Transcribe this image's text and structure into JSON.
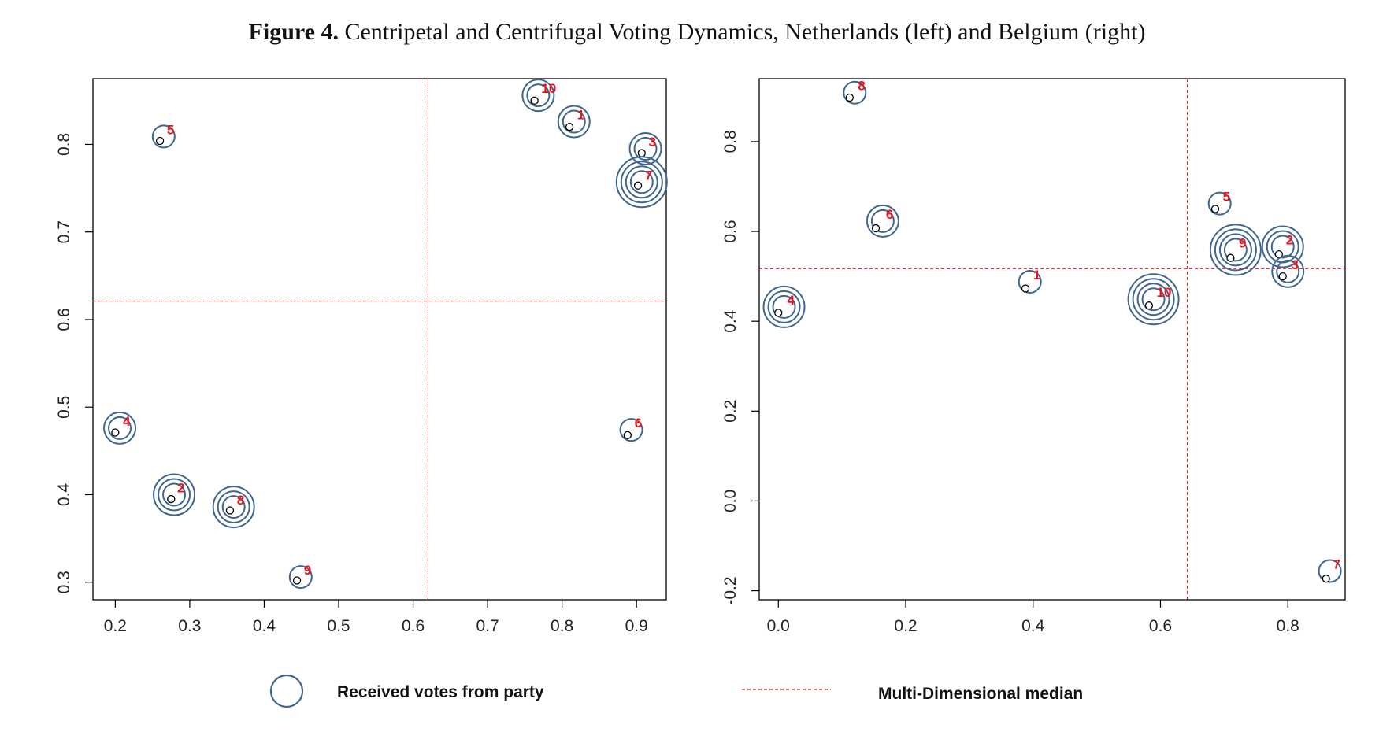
{
  "figure": {
    "title_bold": "Figure 4.",
    "title_rest": " Centripetal and Centrifugal Voting Dynamics, Netherlands (left) and Belgium (right)"
  },
  "legend": {
    "circle_label": "Received votes from party",
    "median_label": "Multi-Dimensional median"
  },
  "colors": {
    "ring": "#3e6690",
    "median": "#e8141c",
    "label": "#e8141c",
    "point": "#000000"
  },
  "chart_data": [
    {
      "type": "scatter",
      "panel": "Netherlands (left)",
      "xlim": [
        0.17,
        0.94
      ],
      "ylim": [
        0.28,
        0.875
      ],
      "x_ticks": [
        0.2,
        0.3,
        0.4,
        0.5,
        0.6,
        0.7,
        0.8,
        0.9
      ],
      "y_ticks": [
        0.3,
        0.4,
        0.5,
        0.6,
        0.7,
        0.8
      ],
      "x_tick_labels": [
        "0.2",
        "0.3",
        "0.4",
        "0.5",
        "0.6",
        "0.7",
        "0.8",
        "0.9"
      ],
      "y_tick_labels": [
        "0.3",
        "0.4",
        "0.5",
        "0.6",
        "0.7",
        "0.8"
      ],
      "median": {
        "x": 0.62,
        "y": 0.621
      },
      "parties": [
        {
          "label": "1",
          "x": 0.81,
          "y": 0.82,
          "cx": 0.816,
          "cy": 0.826,
          "rings": 2
        },
        {
          "label": "2",
          "x": 0.275,
          "y": 0.395,
          "cx": 0.279,
          "cy": 0.4,
          "rings": 3
        },
        {
          "label": "3",
          "x": 0.907,
          "y": 0.79,
          "cx": 0.912,
          "cy": 0.795,
          "rings": 2
        },
        {
          "label": "4",
          "x": 0.2,
          "y": 0.471,
          "cx": 0.206,
          "cy": 0.476,
          "rings": 2
        },
        {
          "label": "5",
          "x": 0.26,
          "y": 0.804,
          "cx": 0.265,
          "cy": 0.809,
          "rings": 1
        },
        {
          "label": "6",
          "x": 0.888,
          "y": 0.468,
          "cx": 0.893,
          "cy": 0.474,
          "rings": 1
        },
        {
          "label": "7",
          "x": 0.902,
          "y": 0.753,
          "cx": 0.907,
          "cy": 0.757,
          "rings": 4
        },
        {
          "label": "8",
          "x": 0.354,
          "y": 0.382,
          "cx": 0.359,
          "cy": 0.386,
          "rings": 3
        },
        {
          "label": "9",
          "x": 0.444,
          "y": 0.302,
          "cx": 0.449,
          "cy": 0.306,
          "rings": 1
        },
        {
          "label": "10",
          "x": 0.763,
          "y": 0.85,
          "cx": 0.768,
          "cy": 0.856,
          "rings": 2
        }
      ]
    },
    {
      "type": "scatter",
      "panel": "Belgium (right)",
      "xlim": [
        -0.03,
        0.89
      ],
      "ylim": [
        -0.22,
        0.94
      ],
      "x_ticks": [
        0.0,
        0.2,
        0.4,
        0.6,
        0.8
      ],
      "y_ticks": [
        -0.2,
        0.0,
        0.2,
        0.4,
        0.6,
        0.8
      ],
      "x_tick_labels": [
        "0.0",
        "0.2",
        "0.4",
        "0.6",
        "0.8"
      ],
      "y_tick_labels": [
        "-0.2",
        "0.0",
        "0.2",
        "0.4",
        "0.6",
        "0.8"
      ],
      "median": {
        "x": 0.642,
        "y": 0.517
      },
      "parties": [
        {
          "label": "1",
          "x": 0.388,
          "y": 0.473,
          "cx": 0.395,
          "cy": 0.488,
          "rings": 1
        },
        {
          "label": "2",
          "x": 0.786,
          "y": 0.549,
          "cx": 0.792,
          "cy": 0.566,
          "rings": 3
        },
        {
          "label": "3",
          "x": 0.792,
          "y": 0.5,
          "cx": 0.8,
          "cy": 0.511,
          "rings": 2
        },
        {
          "label": "4",
          "x": 0.0,
          "y": 0.419,
          "cx": 0.009,
          "cy": 0.432,
          "rings": 3
        },
        {
          "label": "5",
          "x": 0.686,
          "y": 0.65,
          "cx": 0.693,
          "cy": 0.662,
          "rings": 1
        },
        {
          "label": "6",
          "x": 0.153,
          "y": 0.607,
          "cx": 0.164,
          "cy": 0.623,
          "rings": 2
        },
        {
          "label": "7",
          "x": 0.86,
          "y": -0.173,
          "cx": 0.866,
          "cy": -0.156,
          "rings": 1
        },
        {
          "label": "8",
          "x": 0.112,
          "y": 0.898,
          "cx": 0.12,
          "cy": 0.909,
          "rings": 1
        },
        {
          "label": "9",
          "x": 0.71,
          "y": 0.541,
          "cx": 0.718,
          "cy": 0.559,
          "rings": 4
        },
        {
          "label": "10",
          "x": 0.582,
          "y": 0.435,
          "cx": 0.589,
          "cy": 0.449,
          "rings": 4
        }
      ]
    }
  ]
}
